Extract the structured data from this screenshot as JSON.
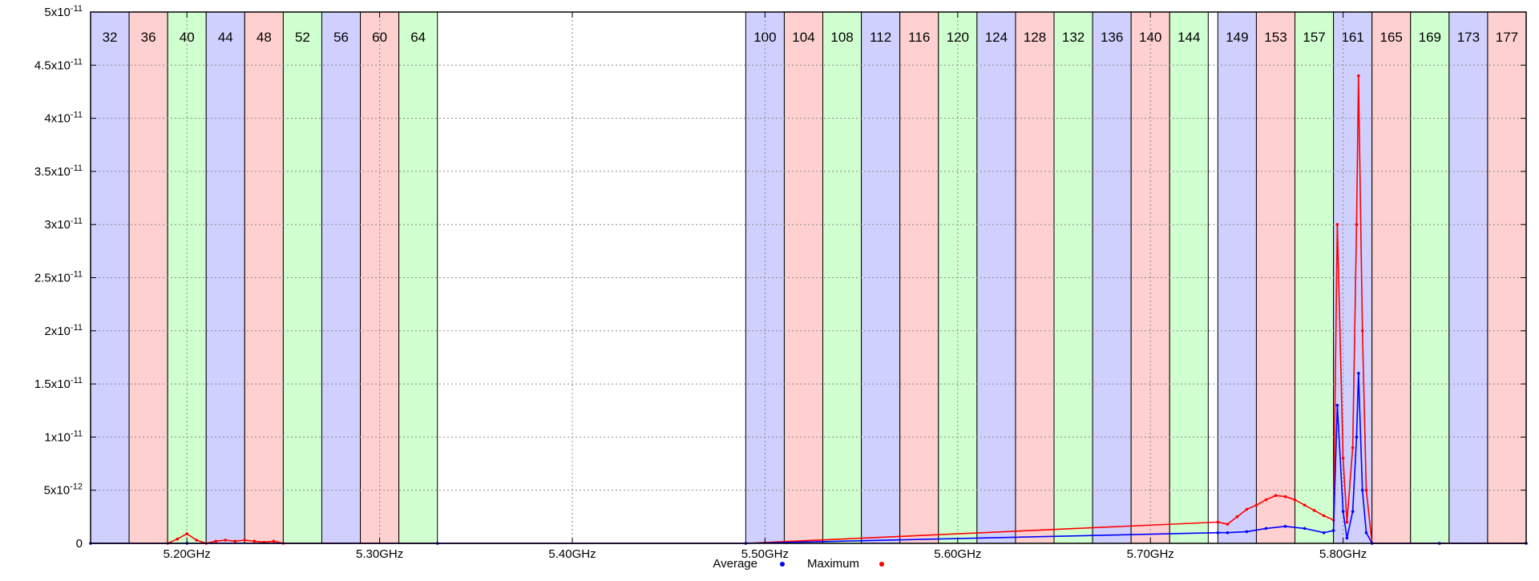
{
  "chart_data": {
    "type": "scatter",
    "title": "",
    "xlabel": "",
    "ylabel": "",
    "xlim": [
      5.15,
      5.895
    ],
    "ylim": [
      0,
      5e-11
    ],
    "x_unit": "GHz",
    "grid": true,
    "x_ticks": [
      {
        "value": 5.2,
        "label": "5.20GHz"
      },
      {
        "value": 5.3,
        "label": "5.30GHz"
      },
      {
        "value": 5.4,
        "label": "5.40GHz"
      },
      {
        "value": 5.5,
        "label": "5.50GHz"
      },
      {
        "value": 5.6,
        "label": "5.60GHz"
      },
      {
        "value": 5.7,
        "label": "5.70GHz"
      },
      {
        "value": 5.8,
        "label": "5.80GHz"
      }
    ],
    "y_ticks": [
      {
        "value": 0,
        "base": "0",
        "exp": ""
      },
      {
        "value": 5e-12,
        "base": "5x10",
        "exp": "-12"
      },
      {
        "value": 1e-11,
        "base": "1x10",
        "exp": "-11"
      },
      {
        "value": 1.5e-11,
        "base": "1.5x10",
        "exp": "-11"
      },
      {
        "value": 2e-11,
        "base": "2x10",
        "exp": "-11"
      },
      {
        "value": 2.5e-11,
        "base": "2.5x10",
        "exp": "-11"
      },
      {
        "value": 3e-11,
        "base": "3x10",
        "exp": "-11"
      },
      {
        "value": 3.5e-11,
        "base": "3.5x10",
        "exp": "-11"
      },
      {
        "value": 4e-11,
        "base": "4x10",
        "exp": "-11"
      },
      {
        "value": 4.5e-11,
        "base": "4.5x10",
        "exp": "-11"
      },
      {
        "value": 5e-11,
        "base": "5x10",
        "exp": "-11"
      }
    ],
    "channels": [
      {
        "label": "32",
        "start": 5.15,
        "end": 5.17,
        "color": "#d0d0ff"
      },
      {
        "label": "36",
        "start": 5.17,
        "end": 5.19,
        "color": "#ffd0d0"
      },
      {
        "label": "40",
        "start": 5.19,
        "end": 5.21,
        "color": "#d0ffd0"
      },
      {
        "label": "44",
        "start": 5.21,
        "end": 5.23,
        "color": "#d0d0ff"
      },
      {
        "label": "48",
        "start": 5.23,
        "end": 5.25,
        "color": "#ffd0d0"
      },
      {
        "label": "52",
        "start": 5.25,
        "end": 5.27,
        "color": "#d0ffd0"
      },
      {
        "label": "56",
        "start": 5.27,
        "end": 5.29,
        "color": "#d0d0ff"
      },
      {
        "label": "60",
        "start": 5.29,
        "end": 5.31,
        "color": "#ffd0d0"
      },
      {
        "label": "64",
        "start": 5.31,
        "end": 5.33,
        "color": "#d0ffd0"
      },
      {
        "label": "100",
        "start": 5.49,
        "end": 5.51,
        "color": "#d0d0ff"
      },
      {
        "label": "104",
        "start": 5.51,
        "end": 5.53,
        "color": "#ffd0d0"
      },
      {
        "label": "108",
        "start": 5.53,
        "end": 5.55,
        "color": "#d0ffd0"
      },
      {
        "label": "112",
        "start": 5.55,
        "end": 5.57,
        "color": "#d0d0ff"
      },
      {
        "label": "116",
        "start": 5.57,
        "end": 5.59,
        "color": "#ffd0d0"
      },
      {
        "label": "120",
        "start": 5.59,
        "end": 5.61,
        "color": "#d0ffd0"
      },
      {
        "label": "124",
        "start": 5.61,
        "end": 5.63,
        "color": "#d0d0ff"
      },
      {
        "label": "128",
        "start": 5.63,
        "end": 5.65,
        "color": "#ffd0d0"
      },
      {
        "label": "132",
        "start": 5.65,
        "end": 5.67,
        "color": "#d0ffd0"
      },
      {
        "label": "136",
        "start": 5.67,
        "end": 5.69,
        "color": "#d0d0ff"
      },
      {
        "label": "140",
        "start": 5.69,
        "end": 5.71,
        "color": "#ffd0d0"
      },
      {
        "label": "144",
        "start": 5.71,
        "end": 5.73,
        "color": "#d0ffd0"
      },
      {
        "label": "149",
        "start": 5.735,
        "end": 5.755,
        "color": "#d0d0ff"
      },
      {
        "label": "153",
        "start": 5.755,
        "end": 5.775,
        "color": "#ffd0d0"
      },
      {
        "label": "157",
        "start": 5.775,
        "end": 5.795,
        "color": "#d0ffd0"
      },
      {
        "label": "161",
        "start": 5.795,
        "end": 5.815,
        "color": "#d0d0ff"
      },
      {
        "label": "165",
        "start": 5.815,
        "end": 5.835,
        "color": "#ffd0d0"
      },
      {
        "label": "169",
        "start": 5.835,
        "end": 5.855,
        "color": "#d0ffd0"
      },
      {
        "label": "173",
        "start": 5.855,
        "end": 5.875,
        "color": "#d0d0ff"
      },
      {
        "label": "177",
        "start": 5.875,
        "end": 5.895,
        "color": "#ffd0d0"
      }
    ],
    "series": [
      {
        "name": "Average",
        "color": "#0000ff",
        "x": [
          5.15,
          5.2,
          5.33,
          5.49,
          5.735,
          5.74,
          5.75,
          5.76,
          5.77,
          5.78,
          5.79,
          5.795,
          5.797,
          5.8,
          5.802,
          5.805,
          5.807,
          5.808,
          5.81,
          5.812,
          5.815,
          5.85,
          5.895
        ],
        "y": [
          0,
          0,
          0,
          0,
          1e-12,
          1e-12,
          1.1e-12,
          1.4e-12,
          1.6e-12,
          1.4e-12,
          1e-12,
          1.2e-12,
          1.3e-11,
          3e-12,
          5e-13,
          3e-12,
          1e-11,
          1.6e-11,
          5e-12,
          1e-12,
          0,
          0,
          0
        ]
      },
      {
        "name": "Maximum",
        "color": "#ff0000",
        "x": [
          5.15,
          5.19,
          5.195,
          5.2,
          5.205,
          5.21,
          5.215,
          5.22,
          5.225,
          5.23,
          5.235,
          5.24,
          5.245,
          5.25,
          5.33,
          5.49,
          5.735,
          5.74,
          5.745,
          5.75,
          5.755,
          5.76,
          5.765,
          5.77,
          5.775,
          5.78,
          5.785,
          5.79,
          5.795,
          5.797,
          5.8,
          5.802,
          5.805,
          5.807,
          5.808,
          5.81,
          5.812,
          5.815,
          5.85,
          5.895
        ],
        "y": [
          0,
          0,
          4e-13,
          9e-13,
          3e-13,
          0,
          2e-13,
          3e-13,
          2e-13,
          3e-13,
          2e-13,
          1e-13,
          2e-13,
          0,
          0,
          0,
          2e-12,
          1.8e-12,
          2.5e-12,
          3.2e-12,
          3.6e-12,
          4.1e-12,
          4.5e-12,
          4.4e-12,
          4.1e-12,
          3.6e-12,
          3.1e-12,
          2.6e-12,
          2.2e-12,
          3e-11,
          8e-12,
          2e-12,
          9e-12,
          3e-11,
          4.4e-11,
          2e-11,
          5e-12,
          0,
          0,
          0
        ]
      }
    ],
    "legend": {
      "placement": "bottom-center",
      "items": [
        "Average",
        "Maximum"
      ]
    }
  }
}
